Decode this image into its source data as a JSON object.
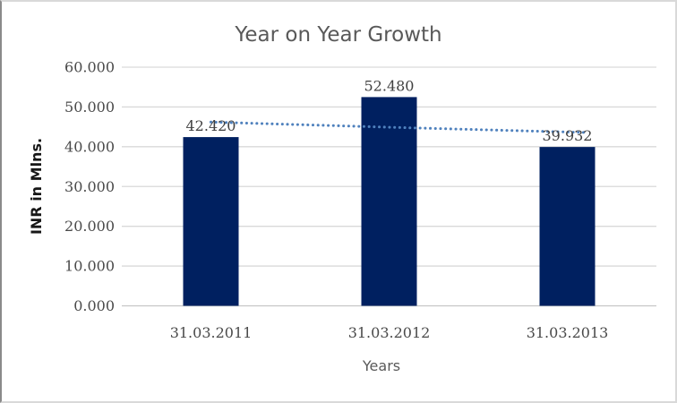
{
  "chart_data": {
    "type": "bar",
    "title": "Year on Year Growth",
    "xlabel": "Years",
    "ylabel": "INR in Mlns.",
    "categories": [
      "31.03.2011",
      "31.03.2012",
      "31.03.2013"
    ],
    "values": [
      42.42,
      52.48,
      39.932
    ],
    "data_labels": [
      "42.420",
      "52.480",
      "39.932"
    ],
    "ylim": [
      0,
      60
    ],
    "ytick_step": 10,
    "ytick_labels": [
      "0.000",
      "10.000",
      "20.000",
      "30.000",
      "40.000",
      "50.000",
      "60.000"
    ],
    "grid": true,
    "legend": "none",
    "trendline": {
      "name": "linear-trend",
      "style": "dotted",
      "values": [
        46.2,
        44.9,
        43.7
      ]
    },
    "colors": {
      "bar": "#002060",
      "trendline": "#4F81BD",
      "gridline": "#d9d9d9",
      "axis_line": "#c6c6c6",
      "title_text": "#595959",
      "tick_text": "#4a4a4a",
      "data_label_text": "#404040"
    }
  }
}
